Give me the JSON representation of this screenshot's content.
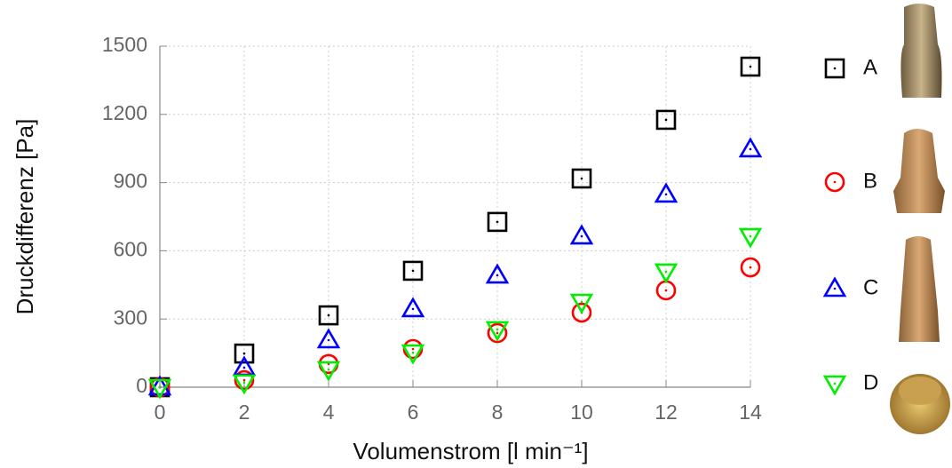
{
  "chart_data": {
    "type": "scatter",
    "xlabel": "Volumenstrom [l min⁻¹]",
    "ylabel": "Druckdifferenz [Pa]",
    "x": [
      0,
      2,
      4,
      6,
      8,
      10,
      12,
      14
    ],
    "series": [
      {
        "name": "A",
        "color": "#000000",
        "marker": "square",
        "values": [
          0,
          148,
          316,
          512,
          727,
          918,
          1176,
          1410
        ]
      },
      {
        "name": "B",
        "color": "#ff0000",
        "marker": "circle",
        "values": [
          0,
          31,
          102,
          168,
          238,
          328,
          426,
          527
        ]
      },
      {
        "name": "C",
        "color": "#0000ff",
        "marker": "triangle-up",
        "values": [
          0,
          86,
          207,
          344,
          492,
          664,
          848,
          1047
        ]
      },
      {
        "name": "D",
        "color": "#00ee00",
        "marker": "triangle-down",
        "values": [
          0,
          20,
          78,
          152,
          254,
          375,
          508,
          664
        ]
      }
    ],
    "xlim": [
      0,
      14
    ],
    "xticks": [
      0,
      2,
      4,
      6,
      8,
      10,
      12,
      14
    ],
    "ylim": [
      0,
      1500
    ],
    "yticks": [
      0,
      300,
      600,
      900,
      1200,
      1500
    ],
    "grid": true,
    "legend": "right"
  }
}
